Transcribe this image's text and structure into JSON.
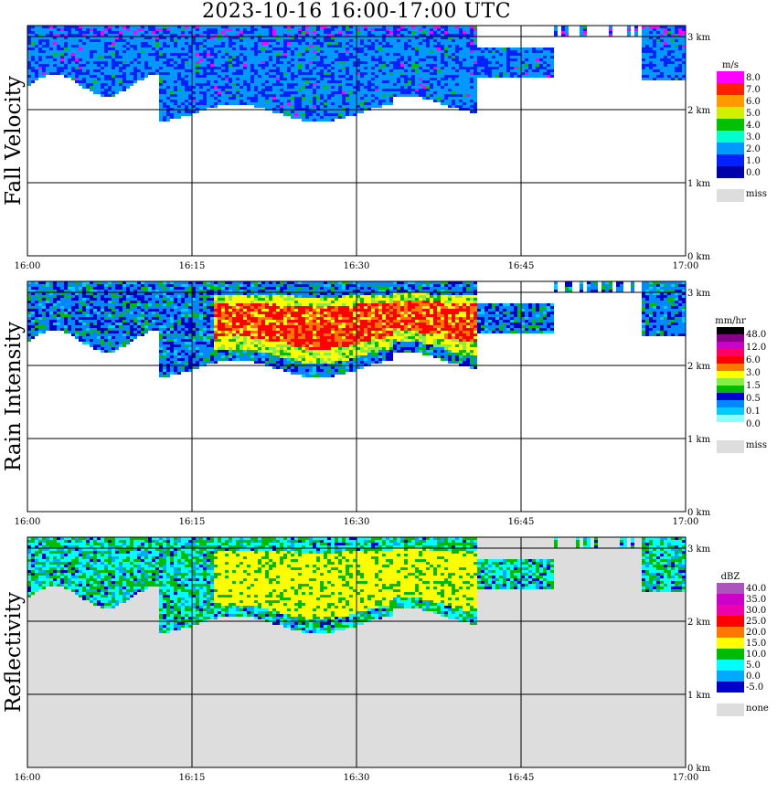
{
  "header": {
    "title": "2023-10-16   16:00-17:00 UTC"
  },
  "chart_data": [
    {
      "type": "heatmap",
      "title": "Fall Velocity",
      "ylabel": "Fall Velocity",
      "x_ticks": [
        "16:00",
        "16:15",
        "16:30",
        "16:45",
        "17:00"
      ],
      "y_ticks": [
        "0 km",
        "1 km",
        "2 km",
        "3 km"
      ],
      "ylim": [
        0,
        3.2
      ],
      "units": "m/s",
      "legend": [
        "8.0",
        "7.0",
        "6.0",
        "5.0",
        "4.0",
        "3.0",
        "2.0",
        "1.0",
        "0.0",
        "miss"
      ],
      "colors": [
        "#ff00ff",
        "#ff2000",
        "#ff9900",
        "#d0f000",
        "#00c000",
        "#00ffcc",
        "#0099ff",
        "#0022ff",
        "#0000aa",
        "#dddddd"
      ],
      "cloud_base_km": 2.0,
      "cloud_top_km": 3.1,
      "dominant_value": "1.0-2.0 m/s",
      "background": "#ffffff"
    },
    {
      "type": "heatmap",
      "title": "Rain Intensity",
      "ylabel": "Rain Intensity",
      "x_ticks": [
        "16:00",
        "16:15",
        "16:30",
        "16:45",
        "17:00"
      ],
      "y_ticks": [
        "0 km",
        "1 km",
        "2 km",
        "3 km"
      ],
      "ylim": [
        0,
        3.2
      ],
      "units": "mm/hr",
      "legend": [
        "48.0",
        "12.0",
        "6.0",
        "3.0",
        "1.5",
        "0.5",
        "0.1",
        "0.0",
        "miss"
      ],
      "colors": [
        "#000000",
        "#880088",
        "#cc00cc",
        "#ff0066",
        "#ff0000",
        "#ff7700",
        "#ffff00",
        "#88ee44",
        "#00bb00",
        "#0000cc",
        "#0088ff",
        "#00ccff",
        "#88ffff",
        "#ffffff",
        "#dddddd"
      ],
      "core_start": "16:17",
      "core_end": "16:42",
      "background": "#ffffff"
    },
    {
      "type": "heatmap",
      "title": "Reflectivity",
      "ylabel": "Reflectivity",
      "x_ticks": [
        "16:00",
        "16:15",
        "16:30",
        "16:45",
        "17:00"
      ],
      "y_ticks": [
        "0 km",
        "1 km",
        "2 km",
        "3 km"
      ],
      "ylim": [
        0,
        3.2
      ],
      "units": "dBZ",
      "legend": [
        "40.0",
        "35.0",
        "30.0",
        "25.0",
        "20.0",
        "15.0",
        "10.0",
        "5.0",
        "0.0",
        "-5.0",
        "none"
      ],
      "colors": [
        "#aa55bb",
        "#cc00cc",
        "#ee00aa",
        "#ff0000",
        "#ff7700",
        "#ffff00",
        "#00bb00",
        "#00ffff",
        "#00aaff",
        "#0000cc",
        "#dddddd"
      ],
      "max_value_dbz": 20.0,
      "background": "#dddddd"
    }
  ]
}
